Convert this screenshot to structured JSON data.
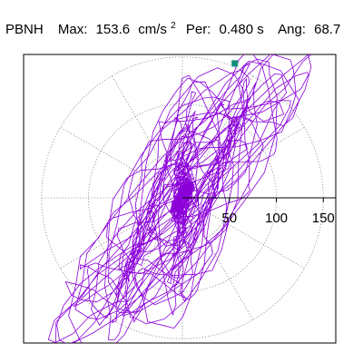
{
  "title": {
    "station": "PBNH",
    "max_label": "Max:",
    "max_value": "153.6",
    "max_unit": "cm/s",
    "max_unit_exp": "2",
    "per_label": "Per:",
    "per_value": "0.480 s",
    "ang_label": "Ang:",
    "ang_value": "68.7"
  },
  "chart_data": {
    "type": "polar-orbit",
    "r_ticks": [
      50,
      100,
      150
    ],
    "r_tick_labels": [
      "50",
      "100",
      "150"
    ],
    "r_max": 160,
    "grid": true,
    "max_amplitude": 153.6,
    "max_angle_deg": 68.7,
    "period_s": 0.48,
    "orbit_color": "#8b00d9",
    "marker_color": "#11917a",
    "grid_color": "#888888"
  }
}
